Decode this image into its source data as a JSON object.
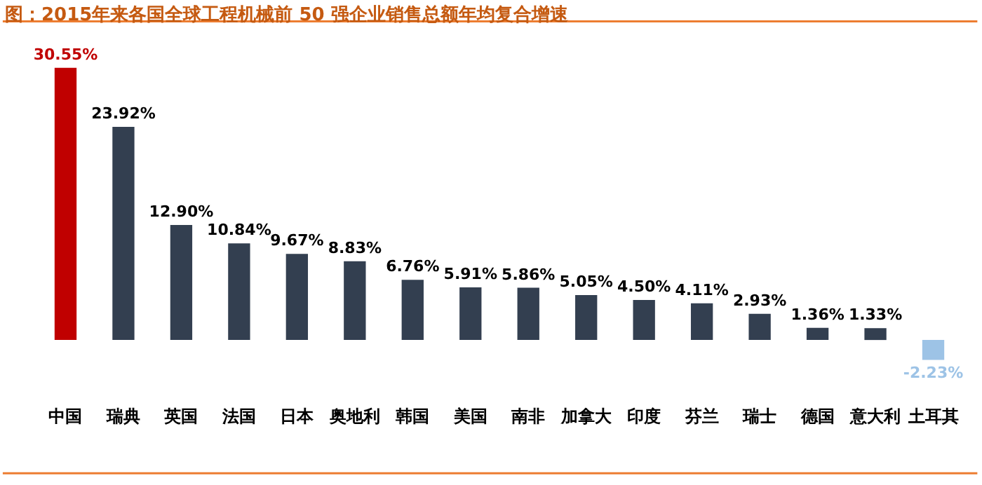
{
  "chart_data": {
    "type": "bar",
    "title": "图：2015年来各国全球工程机械前 50 强企业销售总额年均复合增速",
    "categories": [
      "中国",
      "瑞典",
      "英国",
      "法国",
      "日本",
      "奥地利",
      "韩国",
      "美国",
      "南非",
      "加拿大",
      "印度",
      "芬兰",
      "瑞士",
      "德国",
      "意大利",
      "土耳其"
    ],
    "values": [
      30.55,
      23.92,
      12.9,
      10.84,
      9.67,
      8.83,
      6.76,
      5.91,
      5.86,
      5.05,
      4.5,
      4.11,
      2.93,
      1.36,
      1.33,
      -2.23
    ],
    "colors": [
      "#c00000",
      "#333f50",
      "#333f50",
      "#333f50",
      "#333f50",
      "#333f50",
      "#333f50",
      "#333f50",
      "#333f50",
      "#333f50",
      "#333f50",
      "#333f50",
      "#333f50",
      "#333f50",
      "#333f50",
      "#9dc3e6"
    ],
    "value_labels": [
      "30.55%",
      "23.92%",
      "12.90%",
      "10.84%",
      "9.67%",
      "8.83%",
      "6.76%",
      "5.91%",
      "5.86%",
      "5.05%",
      "4.50%",
      "4.11%",
      "2.93%",
      "1.36%",
      "1.33%",
      "-2.23%"
    ],
    "legend": false
  }
}
